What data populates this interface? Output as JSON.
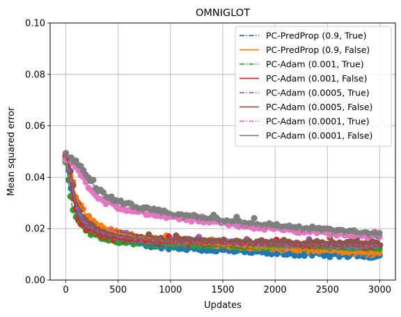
{
  "chart_data": {
    "type": "line",
    "title": "OMNIGLOT",
    "xlabel": "Updates",
    "ylabel": "Mean squared error",
    "xlim": [
      -150,
      3150
    ],
    "ylim": [
      0.0,
      0.1
    ],
    "xticks": [
      0,
      500,
      1000,
      1500,
      2000,
      2500,
      3000
    ],
    "xtick_labels": [
      "0",
      "500",
      "1000",
      "1500",
      "2000",
      "2500",
      "3000"
    ],
    "yticks": [
      0.0,
      0.02,
      0.04,
      0.06,
      0.08,
      0.1
    ],
    "ytick_labels": [
      "0.00",
      "0.02",
      "0.04",
      "0.06",
      "0.08",
      "0.10"
    ],
    "grid": true,
    "legend_position": "top-right",
    "series": [
      {
        "name": "PC-PredProp (0.9, True)",
        "color": "#1f77b4",
        "linestyle": "dashdot",
        "x": [
          0,
          30,
          60,
          100,
          150,
          200,
          300,
          400,
          500,
          700,
          1000,
          1500,
          2000,
          2500,
          3000
        ],
        "y": [
          0.046,
          0.041,
          0.033,
          0.027,
          0.024,
          0.021,
          0.018,
          0.0165,
          0.0155,
          0.014,
          0.0128,
          0.0115,
          0.0105,
          0.0098,
          0.0093
        ]
      },
      {
        "name": "PC-PredProp (0.9, False)",
        "color": "#ff7f0e",
        "linestyle": "solid",
        "x": [
          0,
          30,
          60,
          100,
          150,
          200,
          300,
          400,
          500,
          700,
          1000,
          1500,
          2000,
          2500,
          3000
        ],
        "y": [
          0.048,
          0.045,
          0.038,
          0.032,
          0.028,
          0.025,
          0.0215,
          0.0195,
          0.0182,
          0.0165,
          0.015,
          0.0135,
          0.0123,
          0.0113,
          0.0103
        ]
      },
      {
        "name": "PC-Adam (0.001, True)",
        "color": "#2ca02c",
        "linestyle": "dashdot",
        "x": [
          0,
          30,
          60,
          100,
          150,
          200,
          300,
          400,
          500,
          700,
          1000,
          1500,
          2000,
          2500,
          3000
        ],
        "y": [
          0.046,
          0.037,
          0.029,
          0.024,
          0.021,
          0.019,
          0.0172,
          0.016,
          0.0152,
          0.0145,
          0.0138,
          0.0133,
          0.013,
          0.0128,
          0.0125
        ]
      },
      {
        "name": "PC-Adam (0.001, False)",
        "color": "#d62728",
        "linestyle": "solid",
        "x": [
          0,
          30,
          60,
          100,
          150,
          200,
          300,
          400,
          500,
          700,
          1000,
          1500,
          2000,
          2500,
          3000
        ],
        "y": [
          0.049,
          0.044,
          0.034,
          0.026,
          0.022,
          0.02,
          0.018,
          0.0168,
          0.016,
          0.0153,
          0.0147,
          0.0142,
          0.0138,
          0.0135,
          0.0133
        ]
      },
      {
        "name": "PC-Adam (0.0005, True)",
        "color": "#9467bd",
        "linestyle": "dashdot",
        "x": [
          0,
          30,
          60,
          100,
          150,
          200,
          300,
          400,
          500,
          700,
          1000,
          1500,
          2000,
          2500,
          3000
        ],
        "y": [
          0.047,
          0.043,
          0.036,
          0.029,
          0.025,
          0.022,
          0.019,
          0.0178,
          0.0168,
          0.0158,
          0.015,
          0.0144,
          0.014,
          0.0137,
          0.0135
        ]
      },
      {
        "name": "PC-Adam (0.0005, False)",
        "color": "#8c564b",
        "linestyle": "solid",
        "x": [
          0,
          30,
          60,
          100,
          150,
          200,
          300,
          400,
          500,
          700,
          1000,
          1500,
          2000,
          2500,
          3000
        ],
        "y": [
          0.049,
          0.046,
          0.039,
          0.031,
          0.026,
          0.023,
          0.02,
          0.0185,
          0.0175,
          0.0163,
          0.0155,
          0.0149,
          0.0146,
          0.0144,
          0.0142
        ]
      },
      {
        "name": "PC-Adam (0.0001, True)",
        "color": "#e377c2",
        "linestyle": "dashdot",
        "x": [
          0,
          30,
          60,
          100,
          150,
          200,
          250,
          300,
          400,
          500,
          700,
          1000,
          1500,
          2000,
          2500,
          3000
        ],
        "y": [
          0.046,
          0.046,
          0.045,
          0.044,
          0.041,
          0.037,
          0.034,
          0.032,
          0.03,
          0.0285,
          0.0265,
          0.0245,
          0.022,
          0.0198,
          0.0182,
          0.0168
        ]
      },
      {
        "name": "PC-Adam (0.0001, False)",
        "color": "#7f7f7f",
        "linestyle": "solid",
        "x": [
          0,
          30,
          60,
          100,
          150,
          200,
          250,
          300,
          400,
          500,
          700,
          1000,
          1500,
          2000,
          2500,
          3000
        ],
        "y": [
          0.049,
          0.0475,
          0.047,
          0.046,
          0.044,
          0.041,
          0.038,
          0.0355,
          0.0325,
          0.0305,
          0.028,
          0.0258,
          0.0232,
          0.0212,
          0.0195,
          0.0178
        ]
      }
    ]
  }
}
